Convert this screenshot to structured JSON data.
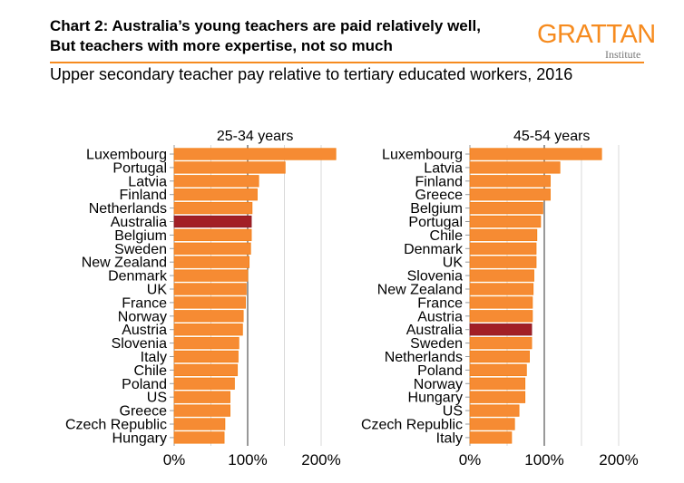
{
  "header": {
    "title_line1": "Chart 2: Australia’s young teachers are paid relatively well,",
    "title_line2": "But teachers with more expertise, not so much",
    "subtitle": "Upper secondary teacher pay relative to tertiary educated workers, 2016",
    "logo_main": "GRATTAN",
    "logo_sub": "Institute"
  },
  "colors": {
    "bar": "#f68b33",
    "highlight": "#a21f26",
    "accent": "#f68b1f",
    "grid": "#d9d9d9",
    "ref_line": "#555555"
  },
  "chart_data": [
    {
      "type": "bar",
      "orientation": "horizontal",
      "title": "25-34 years",
      "xlim": [
        0,
        220
      ],
      "xticks": [
        "0%",
        "100%",
        "200%"
      ],
      "highlight": "Australia",
      "categories": [
        "Luxembourg",
        "Portugal",
        "Latvia",
        "Finland",
        "Netherlands",
        "Australia",
        "Belgium",
        "Sweden",
        "New Zealand",
        "Denmark",
        "UK",
        "France",
        "Norway",
        "Austria",
        "Slovenia",
        "Italy",
        "Chile",
        "Poland",
        "US",
        "Greece",
        "Czech Republic",
        "Hungary"
      ],
      "values": [
        220,
        151,
        115,
        113,
        106,
        105,
        105,
        104,
        102,
        100,
        98,
        97,
        94,
        93,
        88,
        87,
        86,
        82,
        76,
        76,
        69,
        68
      ]
    },
    {
      "type": "bar",
      "orientation": "horizontal",
      "title": "45-54 years",
      "xlim": [
        0,
        220
      ],
      "xticks": [
        "0%",
        "100%",
        "200%"
      ],
      "highlight": "Australia",
      "categories": [
        "Luxembourg",
        "Latvia",
        "Finland",
        "Greece",
        "Belgium",
        "Portugal",
        "Chile",
        "Denmark",
        "UK",
        "Slovenia",
        "New Zealand",
        "France",
        "Austria",
        "Australia",
        "Sweden",
        "Netherlands",
        "Poland",
        "Norway",
        "Hungary",
        "US",
        "Czech Republic",
        "Italy"
      ],
      "values": [
        177,
        121,
        108,
        108,
        98,
        95,
        90,
        89,
        89,
        86,
        85,
        84,
        84,
        83,
        83,
        80,
        76,
        74,
        74,
        66,
        60,
        56
      ]
    }
  ]
}
